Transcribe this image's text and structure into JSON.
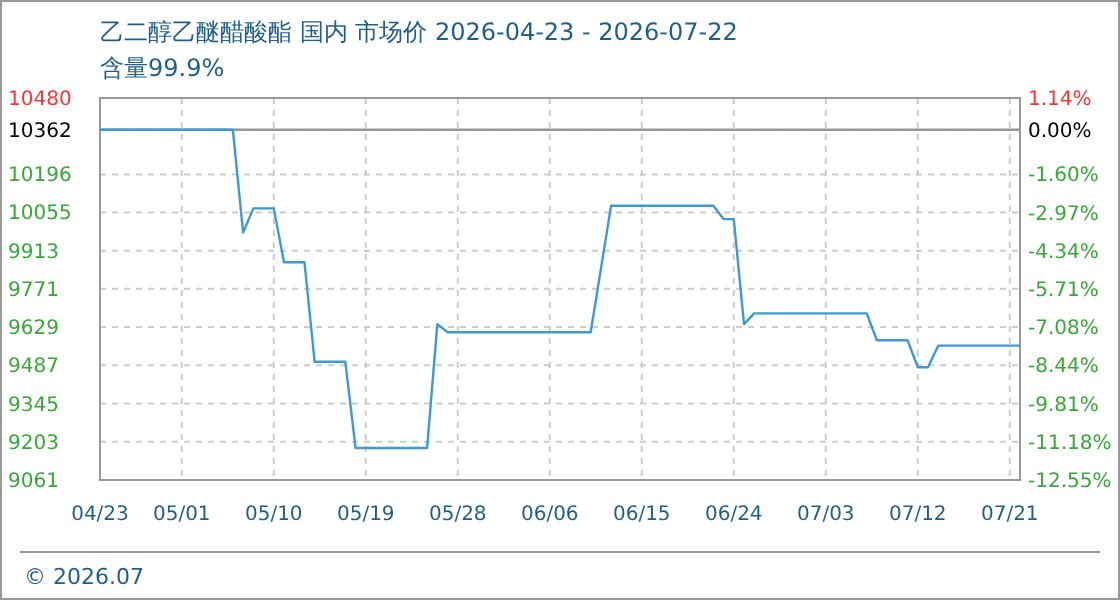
{
  "chart_data": {
    "type": "line",
    "title": "乙二醇乙醚醋酸酯 国内 市场价 2026-04-23 - 2026-07-22",
    "subtitle": "含量99.9%",
    "x": [
      "2026-04-23",
      "2026-05-06",
      "2026-05-07",
      "2026-05-08",
      "2026-05-10",
      "2026-05-11",
      "2026-05-13",
      "2026-05-14",
      "2026-05-17",
      "2026-05-18",
      "2026-05-25",
      "2026-05-26",
      "2026-05-27",
      "2026-06-10",
      "2026-06-12",
      "2026-06-22",
      "2026-06-23",
      "2026-06-24",
      "2026-06-25",
      "2026-06-26",
      "2026-07-07",
      "2026-07-08",
      "2026-07-11",
      "2026-07-12",
      "2026-07-13",
      "2026-07-14",
      "2026-07-22"
    ],
    "series": [
      {
        "color": "#3d9ad6",
        "values": [
          10362,
          10362,
          9980,
          10070,
          10070,
          9870,
          9870,
          9500,
          9500,
          9180,
          9180,
          9640,
          9610,
          9610,
          10080,
          10080,
          10030,
          10030,
          9640,
          9680,
          9680,
          9580,
          9580,
          9480,
          9480,
          9560,
          9560
        ]
      }
    ],
    "xlim": [
      "2026-04-23",
      "2026-07-22"
    ],
    "xticks": [
      {
        "value": "2026-04-23",
        "label": "04/23"
      },
      {
        "value": "2026-05-01",
        "label": "05/01"
      },
      {
        "value": "2026-05-10",
        "label": "05/10"
      },
      {
        "value": "2026-05-19",
        "label": "05/19"
      },
      {
        "value": "2026-05-28",
        "label": "05/28"
      },
      {
        "value": "2026-06-06",
        "label": "06/06"
      },
      {
        "value": "2026-06-15",
        "label": "06/15"
      },
      {
        "value": "2026-06-24",
        "label": "06/24"
      },
      {
        "value": "2026-07-03",
        "label": "07/03"
      },
      {
        "value": "2026-07-12",
        "label": "07/12"
      },
      {
        "value": "2026-07-21",
        "label": "07/21"
      }
    ],
    "ylim": [
      9061,
      10480
    ],
    "yticks": [
      9061,
      9203,
      9345,
      9487,
      9629,
      9771,
      9913,
      10055,
      10196,
      10362,
      10480
    ],
    "y2lim": [
      -12.55,
      1.14
    ],
    "y2ticks": [
      {
        "value": -12.55,
        "label": "-12.55%"
      },
      {
        "value": -11.18,
        "label": "-11.18%"
      },
      {
        "value": -9.81,
        "label": "-9.81%"
      },
      {
        "value": -8.44,
        "label": "-8.44%"
      },
      {
        "value": -7.08,
        "label": "-7.08%"
      },
      {
        "value": -5.71,
        "label": "-5.71%"
      },
      {
        "value": -4.34,
        "label": "-4.34%"
      },
      {
        "value": -2.97,
        "label": "-2.97%"
      },
      {
        "value": -1.6,
        "label": "-1.60%"
      },
      {
        "value": 0,
        "label": "0.00%"
      },
      {
        "value": 1.14,
        "label": "1.14%"
      }
    ],
    "ref_lines": [
      {
        "axis": "y",
        "value": 10362,
        "color": "#999999"
      }
    ],
    "grid": true,
    "annotations": [
      "© 2026.07"
    ]
  }
}
